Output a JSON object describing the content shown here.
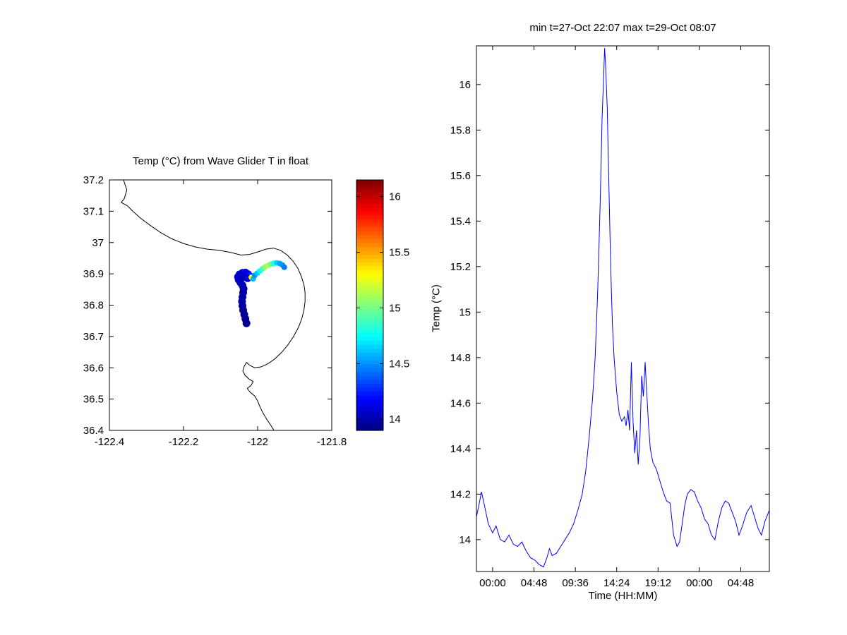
{
  "figure": {
    "background": "#ffffff",
    "axis_color": "#000000"
  },
  "chart_data": [
    {
      "type": "scatter",
      "title": "Temp (°C) from Wave Glider T in float",
      "xlabel": "",
      "ylabel": "",
      "xlim": [
        -122.4,
        -121.8
      ],
      "ylim": [
        36.4,
        37.2
      ],
      "xticks": [
        -122.4,
        -122.2,
        -122.0,
        -121.8
      ],
      "xtick_labels": [
        "-122.4",
        "-122.2",
        "-122",
        "-121.8"
      ],
      "yticks": [
        36.4,
        36.5,
        36.6,
        36.7,
        36.8,
        36.9,
        37.0,
        37.1,
        37.2
      ],
      "ytick_labels": [
        "36.4",
        "36.5",
        "36.6",
        "36.7",
        "36.8",
        "36.9",
        "37",
        "37.1",
        "37.2"
      ],
      "grid": false,
      "colormap": "jet",
      "clim": [
        13.9,
        16.15
      ],
      "colorbar_ticks": [
        14,
        14.5,
        15,
        15.5,
        16
      ],
      "colorbar_tick_labels": [
        "14",
        "14.5",
        "15",
        "15.5",
        "16"
      ],
      "coastline": [
        [
          -122.362,
          37.2
        ],
        [
          -122.353,
          37.168
        ],
        [
          -122.36,
          37.14
        ],
        [
          -122.368,
          37.128
        ],
        [
          -122.352,
          37.118
        ],
        [
          -122.337,
          37.1
        ],
        [
          -122.315,
          37.077
        ],
        [
          -122.29,
          37.055
        ],
        [
          -122.262,
          37.032
        ],
        [
          -122.232,
          37.012
        ],
        [
          -122.2,
          36.997
        ],
        [
          -122.168,
          36.986
        ],
        [
          -122.136,
          36.979
        ],
        [
          -122.104,
          36.975
        ],
        [
          -122.072,
          36.968
        ],
        [
          -122.045,
          36.96
        ],
        [
          -122.022,
          36.962
        ],
        [
          -122.0,
          36.97
        ],
        [
          -121.978,
          36.979
        ],
        [
          -121.957,
          36.982
        ],
        [
          -121.938,
          36.975
        ],
        [
          -121.92,
          36.96
        ],
        [
          -121.904,
          36.94
        ],
        [
          -121.891,
          36.917
        ],
        [
          -121.882,
          36.892
        ],
        [
          -121.875,
          36.866
        ],
        [
          -121.872,
          36.84
        ],
        [
          -121.872,
          36.812
        ],
        [
          -121.875,
          36.784
        ],
        [
          -121.881,
          36.756
        ],
        [
          -121.89,
          36.728
        ],
        [
          -121.903,
          36.7
        ],
        [
          -121.919,
          36.672
        ],
        [
          -121.936,
          36.648
        ],
        [
          -121.954,
          36.628
        ],
        [
          -121.972,
          36.613
        ],
        [
          -121.99,
          36.603
        ],
        [
          -122.008,
          36.6
        ],
        [
          -122.02,
          36.607
        ],
        [
          -122.03,
          36.617
        ],
        [
          -122.036,
          36.605
        ],
        [
          -122.04,
          36.59
        ],
        [
          -122.034,
          36.576
        ],
        [
          -122.024,
          36.565
        ],
        [
          -122.012,
          36.556
        ],
        [
          -122.018,
          36.543
        ],
        [
          -122.028,
          36.534
        ],
        [
          -122.02,
          36.522
        ],
        [
          -122.008,
          36.51
        ],
        [
          -122.0,
          36.494
        ],
        [
          -121.994,
          36.476
        ],
        [
          -121.986,
          36.457
        ],
        [
          -121.977,
          36.438
        ],
        [
          -121.966,
          36.419
        ],
        [
          -121.956,
          36.4
        ]
      ],
      "track": [
        [
          -122.03,
          36.742,
          13.94
        ],
        [
          -122.033,
          36.756,
          13.94
        ],
        [
          -122.036,
          36.77,
          13.95
        ],
        [
          -122.039,
          36.784,
          13.95
        ],
        [
          -122.041,
          36.798,
          13.96
        ],
        [
          -122.042,
          36.812,
          13.97
        ],
        [
          -122.041,
          36.826,
          13.98
        ],
        [
          -122.039,
          36.84,
          13.99
        ],
        [
          -122.038,
          36.852,
          14.0
        ],
        [
          -122.041,
          36.863,
          14.01
        ],
        [
          -122.046,
          36.872,
          14.02
        ],
        [
          -122.051,
          36.881,
          14.04
        ],
        [
          -122.053,
          36.89,
          14.05
        ],
        [
          -122.049,
          36.898,
          14.07
        ],
        [
          -122.041,
          36.903,
          14.09
        ],
        [
          -122.033,
          36.904,
          14.11
        ],
        [
          -122.026,
          36.899,
          14.14
        ],
        [
          -122.021,
          36.892,
          14.25
        ],
        [
          -122.027,
          36.886,
          14.12
        ],
        [
          -122.034,
          36.89,
          14.08
        ],
        [
          -122.044,
          36.894,
          14.05
        ],
        [
          -122.048,
          36.886,
          14.04
        ],
        [
          -122.017,
          36.889,
          15.3
        ],
        [
          -122.012,
          36.884,
          14.6
        ],
        [
          -122.008,
          36.895,
          14.5
        ],
        [
          -122.001,
          36.902,
          14.62
        ],
        [
          -121.994,
          36.909,
          14.75
        ],
        [
          -121.987,
          36.916,
          14.9
        ],
        [
          -121.98,
          36.922,
          15.05
        ],
        [
          -121.972,
          36.927,
          15.12
        ],
        [
          -121.964,
          36.931,
          14.98
        ],
        [
          -121.956,
          36.934,
          14.8
        ],
        [
          -121.948,
          36.935,
          14.65
        ],
        [
          -121.94,
          36.933,
          14.55
        ],
        [
          -121.933,
          36.928,
          14.5
        ],
        [
          -121.928,
          36.921,
          14.45
        ]
      ]
    },
    {
      "type": "line",
      "title": "min t=27-Oct 22:07 max t=29-Oct 08:07",
      "xlabel": "Time (HH:MM)",
      "ylabel": "Temp (°C)",
      "line_color": "#0000ff",
      "xlim": [
        -1.88,
        32.12
      ],
      "ylim": [
        13.86,
        16.17
      ],
      "xticks": [
        0,
        4.8,
        9.6,
        14.4,
        19.2,
        24,
        28.8
      ],
      "xtick_labels": [
        "00:00",
        "04:48",
        "09:36",
        "14:24",
        "19:12",
        "00:00",
        "04:48"
      ],
      "yticks": [
        14,
        14.2,
        14.4,
        14.6,
        14.8,
        15,
        15.2,
        15.4,
        15.6,
        15.8,
        16
      ],
      "ytick_labels": [
        "14",
        "14.2",
        "14.4",
        "14.6",
        "14.8",
        "15",
        "15.2",
        "15.4",
        "15.6",
        "15.8",
        "16"
      ],
      "grid": false,
      "x_hours": [
        -1.88,
        -1.6,
        -1.3,
        -1.0,
        -0.5,
        0.0,
        0.4,
        0.9,
        1.4,
        1.9,
        2.4,
        2.9,
        3.4,
        3.9,
        4.4,
        4.9,
        5.4,
        5.9,
        6.3,
        6.6,
        6.9,
        7.4,
        7.9,
        8.4,
        8.9,
        9.4,
        9.9,
        10.4,
        10.8,
        11.2,
        11.6,
        11.9,
        12.2,
        12.5,
        12.7,
        12.9,
        13.0,
        13.1,
        13.3,
        13.5,
        13.7,
        13.9,
        14.1,
        14.4,
        14.7,
        15.0,
        15.3,
        15.5,
        15.7,
        15.9,
        16.1,
        16.3,
        16.5,
        16.7,
        16.9,
        17.1,
        17.3,
        17.5,
        17.7,
        17.9,
        18.1,
        18.3,
        18.6,
        19.0,
        19.4,
        19.8,
        20.2,
        20.6,
        21.0,
        21.4,
        21.7,
        22.0,
        22.3,
        22.6,
        23.0,
        23.4,
        23.8,
        24.2,
        24.6,
        25.0,
        25.4,
        25.8,
        26.2,
        26.6,
        27.0,
        27.4,
        27.8,
        28.2,
        28.6,
        29.0,
        29.5,
        30.0,
        30.4,
        30.8,
        31.2,
        31.6,
        32.12
      ],
      "y_temp": [
        14.1,
        14.15,
        14.21,
        14.16,
        14.07,
        14.03,
        14.06,
        14.0,
        13.99,
        14.02,
        13.98,
        13.97,
        13.99,
        13.95,
        13.92,
        13.91,
        13.89,
        13.88,
        13.92,
        13.96,
        13.93,
        13.94,
        13.97,
        14.0,
        14.03,
        14.07,
        14.13,
        14.2,
        14.3,
        14.45,
        14.62,
        14.8,
        15.1,
        15.5,
        15.85,
        16.05,
        16.16,
        16.1,
        15.9,
        15.55,
        15.2,
        14.95,
        14.8,
        14.65,
        14.55,
        14.52,
        14.54,
        14.5,
        14.57,
        14.48,
        14.78,
        14.52,
        14.38,
        14.48,
        14.33,
        14.45,
        14.72,
        14.63,
        14.78,
        14.64,
        14.5,
        14.4,
        14.34,
        14.31,
        14.26,
        14.21,
        14.17,
        14.16,
        14.02,
        13.97,
        13.99,
        14.07,
        14.15,
        14.2,
        14.22,
        14.21,
        14.17,
        14.14,
        14.09,
        14.07,
        14.02,
        14.0,
        14.08,
        14.14,
        14.17,
        14.16,
        14.12,
        14.08,
        14.02,
        14.06,
        14.12,
        14.15,
        14.1,
        14.05,
        14.02,
        14.08,
        14.13
      ]
    }
  ]
}
